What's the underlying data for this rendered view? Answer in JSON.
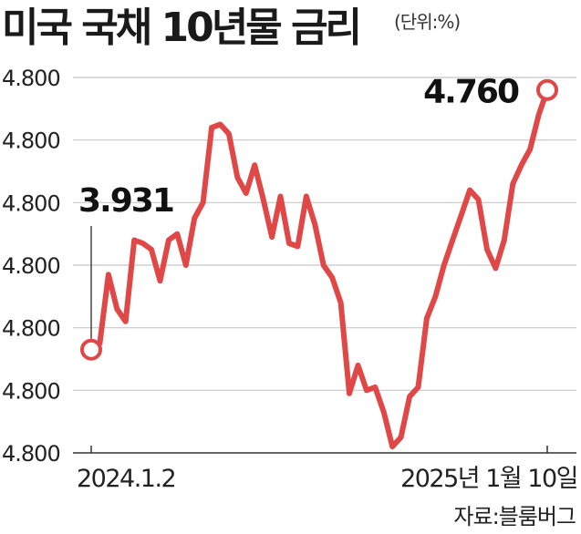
{
  "title": "미국 국채 10년물 금리",
  "unit_label": "(단위:%)",
  "source": "자료:블룸버그",
  "chart_data": {
    "type": "line",
    "title": "미국 국채 10년물 금리",
    "ylabel": "",
    "xlabel": "",
    "y_tick_labels": [
      "4.800",
      "4.800",
      "4.800",
      "4.800",
      "4.800",
      "4.800",
      "4.800"
    ],
    "ylim": [
      3.6,
      4.8
    ],
    "x_tick_labels": [
      "2024.1.2",
      "2025년 1월 10일"
    ],
    "grid": true,
    "line_color": "#e04848",
    "start_label": "3.931",
    "end_label": "4.760",
    "x": [
      "2024-01-02",
      "2024-01-16",
      "2024-01-23",
      "2024-01-31",
      "2024-02-06",
      "2024-02-12",
      "2024-02-20",
      "2024-02-26",
      "2024-03-04",
      "2024-03-11",
      "2024-03-18",
      "2024-03-25",
      "2024-04-02",
      "2024-04-08",
      "2024-04-16",
      "2024-04-22",
      "2024-04-30",
      "2024-05-06",
      "2024-05-14",
      "2024-05-20",
      "2024-05-28",
      "2024-06-04",
      "2024-06-11",
      "2024-06-18",
      "2024-06-25",
      "2024-07-01",
      "2024-07-08",
      "2024-07-15",
      "2024-07-22",
      "2024-07-29",
      "2024-08-05",
      "2024-08-12",
      "2024-08-19",
      "2024-08-26",
      "2024-09-03",
      "2024-09-09",
      "2024-09-16",
      "2024-09-23",
      "2024-09-30",
      "2024-10-07",
      "2024-10-14",
      "2024-10-21",
      "2024-10-28",
      "2024-11-04",
      "2024-11-11",
      "2024-11-18",
      "2024-11-25",
      "2024-12-02",
      "2024-12-09",
      "2024-12-16",
      "2024-12-23",
      "2024-12-30",
      "2025-01-06",
      "2025-01-10"
    ],
    "series": [
      {
        "values": [
          3.93,
          3.95,
          4.17,
          4.06,
          4.02,
          4.28,
          4.27,
          4.25,
          4.15,
          4.28,
          4.3,
          4.2,
          4.35,
          4.4,
          4.64,
          4.65,
          4.62,
          4.48,
          4.43,
          4.52,
          4.41,
          4.29,
          4.42,
          4.27,
          4.26,
          4.42,
          4.33,
          4.2,
          4.16,
          4.08,
          3.79,
          3.88,
          3.8,
          3.81,
          3.73,
          3.62,
          3.65,
          3.78,
          3.81,
          4.03,
          4.1,
          4.2,
          4.28,
          4.36,
          4.44,
          4.41,
          4.25,
          4.19,
          4.28,
          4.46,
          4.52,
          4.57,
          4.68,
          4.76
        ]
      }
    ]
  }
}
